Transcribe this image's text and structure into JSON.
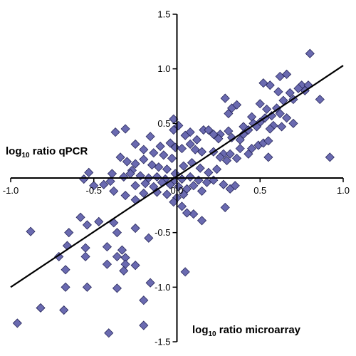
{
  "chart_data": {
    "type": "scatter",
    "title": "",
    "xlabel": {
      "prefix": "log",
      "sub": "10",
      "rest": " ratio microarray"
    },
    "ylabel": {
      "prefix": "log",
      "sub": "10",
      "rest": " ratio qPCR"
    },
    "xlim": [
      -1.0,
      1.0
    ],
    "ylim": [
      -1.5,
      1.5
    ],
    "x_ticks": [
      {
        "value": -1.0,
        "label": "-1.0"
      },
      {
        "value": -0.5,
        "label": "-0.5"
      },
      {
        "value": 0.0,
        "label": "0.0"
      },
      {
        "value": 0.5,
        "label": "0.5"
      },
      {
        "value": 1.0,
        "label": "1.0"
      }
    ],
    "y_ticks": [
      {
        "value": 1.5,
        "label": "1.5"
      },
      {
        "value": 1.0,
        "label": "1.0"
      },
      {
        "value": 0.5,
        "label": "0.5"
      },
      {
        "value": -0.5,
        "label": "-0.5"
      },
      {
        "value": -1.0,
        "label": "-1.0"
      },
      {
        "value": -1.5,
        "label": "-1.5"
      }
    ],
    "grid": false,
    "marker": {
      "shape": "diamond",
      "fill": "#6A6AB0",
      "stroke": "#26265A"
    },
    "trendline": {
      "x": [
        -1.0,
        1.0
      ],
      "y": [
        -1.0,
        1.03
      ],
      "color": "#000000"
    },
    "points": [
      [
        0.8,
        1.14
      ],
      [
        0.66,
        0.95
      ],
      [
        0.62,
        0.93
      ],
      [
        0.75,
        0.85
      ],
      [
        0.52,
        0.87
      ],
      [
        0.56,
        0.85
      ],
      [
        0.73,
        0.82
      ],
      [
        0.77,
        0.8
      ],
      [
        0.68,
        0.78
      ],
      [
        0.61,
        0.79
      ],
      [
        0.64,
        0.71
      ],
      [
        0.7,
        0.72
      ],
      [
        0.79,
        0.85
      ],
      [
        0.86,
        0.72
      ],
      [
        0.29,
        0.73
      ],
      [
        0.33,
        0.64
      ],
      [
        0.36,
        0.67
      ],
      [
        0.5,
        0.68
      ],
      [
        0.54,
        0.63
      ],
      [
        0.6,
        0.64
      ],
      [
        0.62,
        0.59
      ],
      [
        0.57,
        0.57
      ],
      [
        0.45,
        0.56
      ],
      [
        0.5,
        0.51
      ],
      [
        0.66,
        0.55
      ],
      [
        0.7,
        0.5
      ],
      [
        0.46,
        0.5
      ],
      [
        0.58,
        0.48
      ],
      [
        0.63,
        0.47
      ],
      [
        0.4,
        0.47
      ],
      [
        0.31,
        0.59
      ],
      [
        0.53,
        0.55
      ],
      [
        0.48,
        0.47
      ],
      [
        0.43,
        0.44
      ],
      [
        0.56,
        0.45
      ],
      [
        0.4,
        0.4
      ],
      [
        0.26,
        0.4
      ],
      [
        0.31,
        0.43
      ],
      [
        0.33,
        0.37
      ],
      [
        0.38,
        0.35
      ],
      [
        0.49,
        0.3
      ],
      [
        0.52,
        0.32
      ],
      [
        0.55,
        0.34
      ],
      [
        0.45,
        0.27
      ],
      [
        0.38,
        0.27
      ],
      [
        0.28,
        0.22
      ],
      [
        0.32,
        0.22
      ],
      [
        0.36,
        0.18
      ],
      [
        0.43,
        0.22
      ],
      [
        0.55,
        0.19
      ],
      [
        0.92,
        0.19
      ],
      [
        -0.02,
        0.54
      ],
      [
        0.01,
        0.48
      ],
      [
        -0.02,
        0.44
      ],
      [
        0.08,
        0.42
      ],
      [
        0.05,
        0.39
      ],
      [
        0.12,
        0.35
      ],
      [
        0.16,
        0.44
      ],
      [
        0.19,
        0.44
      ],
      [
        0.22,
        0.4
      ],
      [
        0.25,
        0.36
      ],
      [
        -0.31,
        0.45
      ],
      [
        -0.37,
        0.42
      ],
      [
        -0.25,
        0.31
      ],
      [
        -0.16,
        0.38
      ],
      [
        -0.1,
        0.29
      ],
      [
        -0.04,
        0.32
      ],
      [
        -0.01,
        0.28
      ],
      [
        0.03,
        0.27
      ],
      [
        0.08,
        0.31
      ],
      [
        0.11,
        0.26
      ],
      [
        0.15,
        0.24
      ],
      [
        0.22,
        0.24
      ],
      [
        0.26,
        0.19
      ],
      [
        0.3,
        0.16
      ],
      [
        -0.2,
        0.26
      ],
      [
        -0.14,
        0.23
      ],
      [
        -0.08,
        0.21
      ],
      [
        -0.03,
        0.18
      ],
      [
        -0.25,
        0.13
      ],
      [
        -0.2,
        0.17
      ],
      [
        -0.15,
        0.12
      ],
      [
        -0.11,
        0.1
      ],
      [
        -0.06,
        0.08
      ],
      [
        -0.01,
        0.04
      ],
      [
        0.04,
        0.11
      ],
      [
        0.09,
        0.14
      ],
      [
        0.14,
        0.09
      ],
      [
        0.19,
        0.05
      ],
      [
        0.24,
        0.08
      ],
      [
        -0.34,
        0.19
      ],
      [
        -0.3,
        0.15
      ],
      [
        -0.27,
        0.07
      ],
      [
        -0.53,
        0.05
      ],
      [
        -0.39,
        0.04
      ],
      [
        -0.32,
        0.01
      ],
      [
        -0.28,
        0.04
      ],
      [
        -0.22,
        0.02
      ],
      [
        -0.17,
        0.0
      ],
      [
        -0.12,
        0.01
      ],
      [
        -0.07,
        -0.01
      ],
      [
        -0.02,
        -0.03
      ],
      [
        0.03,
        -0.01
      ],
      [
        0.08,
        0.01
      ],
      [
        0.13,
        -0.02
      ],
      [
        0.18,
        -0.04
      ],
      [
        0.22,
        -0.02
      ],
      [
        0.28,
        -0.06
      ],
      [
        0.32,
        -0.1
      ],
      [
        0.35,
        -0.07
      ],
      [
        -0.56,
        -0.01
      ],
      [
        -0.5,
        -0.07
      ],
      [
        -0.44,
        -0.06
      ],
      [
        -0.4,
        -0.03
      ],
      [
        -0.25,
        -0.07
      ],
      [
        -0.19,
        -0.05
      ],
      [
        -0.14,
        -0.08
      ],
      [
        -0.09,
        -0.04
      ],
      [
        -0.04,
        -0.06
      ],
      [
        0.01,
        -0.08
      ],
      [
        0.06,
        -0.1
      ],
      [
        0.1,
        -0.07
      ],
      [
        0.15,
        -0.12
      ],
      [
        -0.38,
        -0.12
      ],
      [
        -0.31,
        -0.16
      ],
      [
        -0.25,
        -0.2
      ],
      [
        -0.2,
        -0.14
      ],
      [
        -0.12,
        -0.13
      ],
      [
        -0.06,
        -0.15
      ],
      [
        0.0,
        -0.18
      ],
      [
        0.04,
        -0.15
      ],
      [
        -0.02,
        -0.22
      ],
      [
        0.03,
        -0.26
      ],
      [
        0.1,
        -0.33
      ],
      [
        0.06,
        -0.32
      ],
      [
        0.29,
        -0.27
      ],
      [
        0.15,
        -0.39
      ],
      [
        -0.58,
        -0.36
      ],
      [
        -0.54,
        -0.43
      ],
      [
        -0.47,
        -0.4
      ],
      [
        -0.38,
        -0.41
      ],
      [
        -0.36,
        -0.5
      ],
      [
        -0.25,
        -0.46
      ],
      [
        -0.17,
        -0.55
      ],
      [
        -0.88,
        -0.49
      ],
      [
        -0.65,
        -0.5
      ],
      [
        -0.66,
        -0.62
      ],
      [
        -0.55,
        -0.64
      ],
      [
        -0.71,
        -0.72
      ],
      [
        -0.55,
        -0.72
      ],
      [
        -0.42,
        -0.63
      ],
      [
        -0.33,
        -0.66
      ],
      [
        -0.36,
        -0.72
      ],
      [
        -0.31,
        -0.73
      ],
      [
        -0.31,
        -0.79
      ],
      [
        -0.32,
        -0.85
      ],
      [
        -0.42,
        -0.79
      ],
      [
        -0.25,
        -0.8
      ],
      [
        -0.67,
        -0.84
      ],
      [
        -0.67,
        -1.0
      ],
      [
        -0.54,
        -1.0
      ],
      [
        -0.16,
        -0.96
      ],
      [
        -0.36,
        -1.01
      ],
      [
        0.05,
        -0.86
      ],
      [
        -0.82,
        -1.19
      ],
      [
        -0.68,
        -1.21
      ],
      [
        -0.96,
        -1.33
      ],
      [
        -0.41,
        -1.42
      ],
      [
        -0.2,
        -1.35
      ],
      [
        -0.2,
        -1.12
      ]
    ]
  }
}
